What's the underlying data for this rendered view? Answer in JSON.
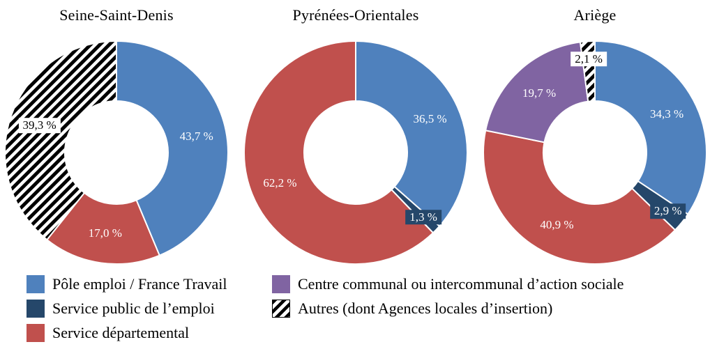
{
  "figure": {
    "background": "#FFFFFF"
  },
  "categories": [
    {
      "key": "pole-emploi",
      "label": "Pôle emploi / France Travail",
      "color": "#4F81BD",
      "type": "solid"
    },
    {
      "key": "service-public-emploi",
      "label": "Service public de l’emploi",
      "color": "#25476A",
      "type": "solid"
    },
    {
      "key": "service-departemental",
      "label": "Service départemental",
      "color": "#C0504D",
      "type": "solid"
    },
    {
      "key": "ccas",
      "label": "Centre communal ou intercommunal d’action sociale",
      "color": "#8064A2",
      "type": "solid"
    },
    {
      "key": "autres",
      "label": "Autres (dont Agences locales d’insertion)",
      "color": "#000000",
      "type": "hatch"
    }
  ],
  "chart_data": [
    {
      "type": "pie",
      "subtype": "donut",
      "title": "Seine-Saint-Denis",
      "unit": "%",
      "start_angle": "top",
      "direction": "clockwise",
      "slices": [
        {
          "category": "Pôle emploi / France Travail",
          "cat": 0,
          "value": 43.7,
          "label": "43,7 %",
          "label_color": "#FFFFFF"
        },
        {
          "category": "Service départemental",
          "cat": 2,
          "value": 17.0,
          "label": "17,0 %",
          "label_color": "#FFFFFF"
        },
        {
          "category": "Autres (dont Agences locales d’insertion)",
          "cat": 4,
          "value": 39.3,
          "label": "39,3 %",
          "label_color": "#000000",
          "label_box": "#FFFFFF"
        }
      ]
    },
    {
      "type": "pie",
      "subtype": "donut",
      "title": "Pyrénées-Orientales",
      "unit": "%",
      "start_angle": "top",
      "direction": "clockwise",
      "slices": [
        {
          "category": "Pôle emploi / France Travail",
          "cat": 0,
          "value": 36.5,
          "label": "36,5 %",
          "label_color": "#FFFFFF"
        },
        {
          "category": "Service public de l’emploi",
          "cat": 1,
          "value": 1.3,
          "label": "1,3 %",
          "label_color": "#FFFFFF",
          "label_box": "#25476A"
        },
        {
          "category": "Service départemental",
          "cat": 2,
          "value": 62.2,
          "label": "62,2 %",
          "label_color": "#FFFFFF"
        }
      ]
    },
    {
      "type": "pie",
      "subtype": "donut",
      "title": "Ariège",
      "unit": "%",
      "start_angle": "top",
      "direction": "clockwise",
      "slices": [
        {
          "category": "Pôle emploi / France Travail",
          "cat": 0,
          "value": 34.3,
          "label": "34,3 %",
          "label_color": "#FFFFFF"
        },
        {
          "category": "Service public de l’emploi",
          "cat": 1,
          "value": 2.9,
          "label": "2,9 %",
          "label_color": "#FFFFFF",
          "label_box": "#25476A"
        },
        {
          "category": "Service départemental",
          "cat": 2,
          "value": 40.9,
          "label": "40,9 %",
          "label_color": "#FFFFFF"
        },
        {
          "category": "Centre communal ou intercommunal d’action sociale",
          "cat": 3,
          "value": 19.7,
          "label": "19,7 %",
          "label_color": "#FFFFFF"
        },
        {
          "category": "Autres (dont Agences locales d’insertion)",
          "cat": 4,
          "value": 2.1,
          "label": "2,1 %",
          "label_color": "#000000",
          "label_box": "#FFFFFF"
        }
      ]
    }
  ],
  "legend": {
    "position": "bottom",
    "columns": [
      [
        {
          "cat": 0,
          "label": "Pôle emploi / France Travail"
        },
        {
          "cat": 1,
          "label": "Service public de l’emploi"
        },
        {
          "cat": 2,
          "label": "Service départemental"
        }
      ],
      [
        {
          "cat": 3,
          "label": "Centre communal ou intercommunal d’action sociale"
        },
        {
          "cat": 4,
          "label": "Autres (dont Agences locales d’insertion)"
        }
      ]
    ]
  }
}
